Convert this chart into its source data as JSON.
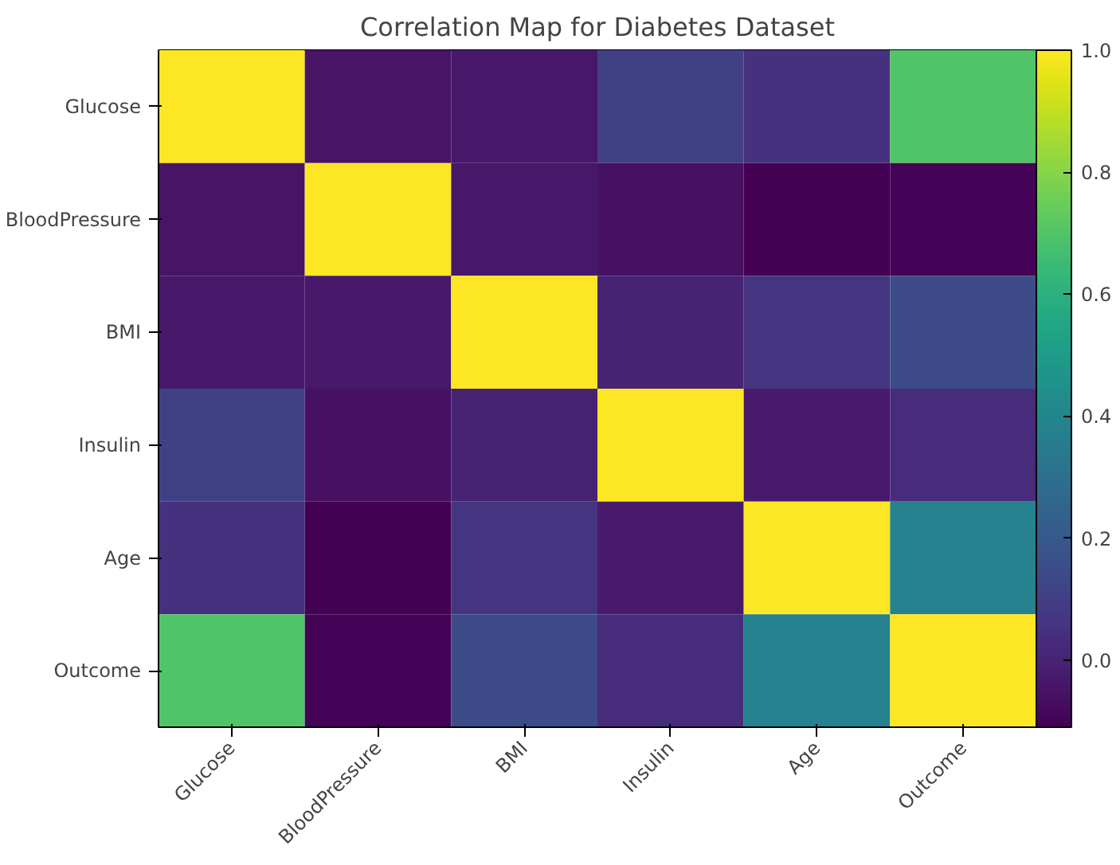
{
  "chart_data": {
    "type": "heatmap",
    "title": "Correlation Map for Diabetes Dataset",
    "categories": [
      "Glucose",
      "BloodPressure",
      "BMI",
      "Insulin",
      "Age",
      "Outcome"
    ],
    "y_categories": [
      "Glucose",
      "BloodPressure",
      "BMI",
      "Insulin",
      "Age",
      "Outcome"
    ],
    "cells": [
      [
        1.0,
        -0.05,
        -0.04,
        0.1,
        0.05,
        0.7
      ],
      [
        -0.05,
        1.0,
        -0.04,
        -0.06,
        -0.11,
        -0.1
      ],
      [
        -0.04,
        -0.04,
        1.0,
        0.0,
        0.06,
        0.15
      ],
      [
        0.1,
        -0.06,
        0.0,
        1.0,
        -0.03,
        0.03
      ],
      [
        0.05,
        -0.11,
        0.06,
        -0.03,
        1.0,
        0.38
      ],
      [
        0.7,
        -0.1,
        0.15,
        0.03,
        0.38,
        1.0
      ]
    ],
    "clim": [
      -0.11,
      1.0
    ],
    "cticks": [
      {
        "value": 0.0,
        "label": "0.0"
      },
      {
        "value": 0.2,
        "label": "0.2"
      },
      {
        "value": 0.4,
        "label": "0.4"
      },
      {
        "value": 0.6,
        "label": "0.6"
      },
      {
        "value": 0.8,
        "label": "0.8"
      },
      {
        "value": 1.0,
        "label": "1.0"
      }
    ]
  }
}
